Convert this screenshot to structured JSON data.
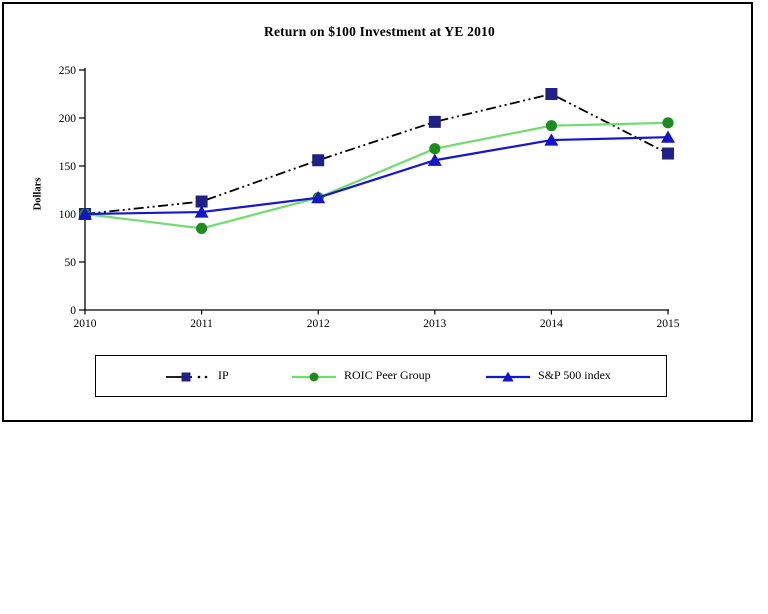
{
  "chart": {
    "title": "Return on $100 Investment at YE 2010",
    "ylabel": "Dollars"
  },
  "chart_data": {
    "type": "line",
    "title": "Return on $100 Investment at YE 2010",
    "xlabel": "",
    "ylabel": "Dollars",
    "categories": [
      "2010",
      "2011",
      "2012",
      "2013",
      "2014",
      "2015"
    ],
    "yticks": [
      0,
      50,
      100,
      150,
      200,
      250
    ],
    "ylim": [
      0,
      250
    ],
    "grid": false,
    "legend_position": "bottom",
    "series": [
      {
        "name": "IP",
        "values": [
          100,
          113,
          156,
          196,
          225,
          163
        ],
        "line_color": "#000000",
        "line_style": "dash-dot-dot",
        "marker": "square",
        "marker_color": "#1f2187"
      },
      {
        "name": "ROIC Peer Group",
        "values": [
          100,
          85,
          117,
          168,
          192,
          195
        ],
        "line_color": "#70db70",
        "line_style": "solid",
        "marker": "circle",
        "marker_color": "#1e8b1e"
      },
      {
        "name": "S&P 500 index",
        "values": [
          100,
          102,
          117,
          156,
          177,
          180
        ],
        "line_color": "#1616ce",
        "line_style": "solid",
        "marker": "triangle",
        "marker_color": "#1414cc"
      }
    ]
  }
}
